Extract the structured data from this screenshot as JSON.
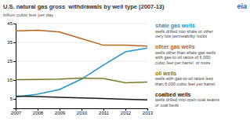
{
  "chart_data": {
    "type": "line",
    "title": "U.S. natural gas gross  withdrawals by well type (2007-13)",
    "subtitle": "billion cubic feet per day",
    "x": [
      2007,
      2008,
      2009,
      2010,
      2011,
      2012,
      2013
    ],
    "series": [
      {
        "name": "shale gas wells",
        "color": "#2196c8",
        "values": [
          6.0,
          7.5,
          10.0,
          15.5,
          23.0,
          30.0,
          32.0
        ],
        "description": [
          "wells drilled into shale or other",
          "very low permeability rocks"
        ]
      },
      {
        "name": "other gas wells",
        "color": "#b5651d",
        "values": [
          41.0,
          41.5,
          40.5,
          37.0,
          33.5,
          33.5,
          33.0
        ],
        "description": [
          "wells other than shale gas wells",
          "with gas-to-oil ratios of 6,000",
          "cubic feet per barrel  or more"
        ]
      },
      {
        "name": "oil wells",
        "color": "#7a7a2a",
        "values": [
          15.2,
          15.3,
          15.5,
          16.0,
          15.8,
          13.5,
          14.0
        ],
        "description": [
          "wells with gas-to-oil ratios less",
          "than 6,000 cubic feet per barrel"
        ]
      },
      {
        "name": "coalbed wells",
        "color": "#1a1a1a",
        "values": [
          6.5,
          6.2,
          5.8,
          5.5,
          5.2,
          4.8,
          4.5
        ],
        "description": [
          "wells drilled into open coal seams",
          "or coal beds"
        ]
      }
    ],
    "xlim": [
      2007,
      2013
    ],
    "xticks": [
      2007,
      2008,
      2009,
      2010,
      2011,
      2012,
      2013
    ],
    "ylim": [
      0,
      45
    ],
    "yticks": [
      5,
      15,
      25,
      35,
      45
    ],
    "grid": true,
    "annotations": [
      "eia"
    ]
  }
}
